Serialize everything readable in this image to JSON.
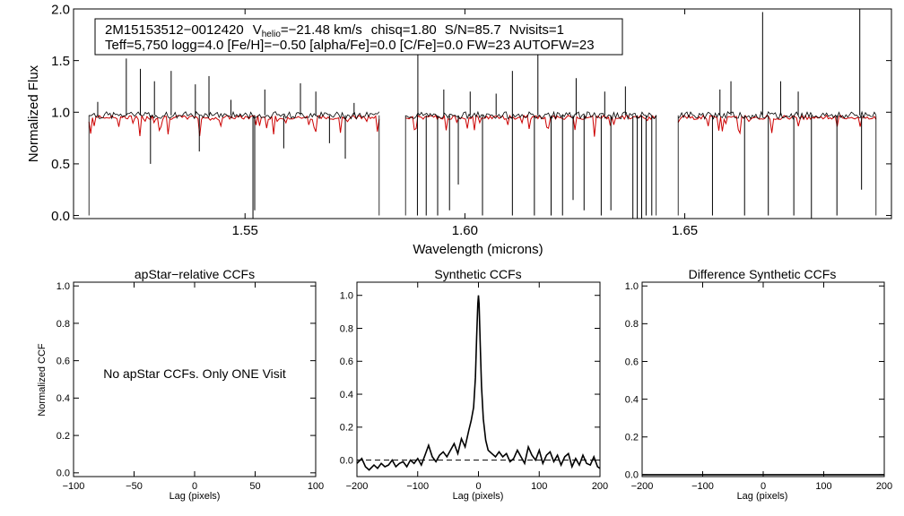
{
  "spectrum_panel": {
    "id_line": "2M15153512−0012420",
    "vhelio_symbol": "V",
    "vhelio_subscript": "helio",
    "vhelio_value": "=−21.48 km/s",
    "chisq": "chisq=1.80",
    "snr": "S/N=85.7",
    "nvisits": "Nvisits=1",
    "params_line": "Teff=5,750 logg=4.0 [Fe/H]=−0.50 [alpha/Fe]=0.0 [C/Fe]=0.0 FW=23 AUTOFW=23",
    "colors": {
      "observed": "#000000",
      "model": "#cc0000"
    }
  },
  "ccf_panels": {
    "ylabel": "Normalized CCF",
    "apstar": {
      "title": "apStar−relative CCFs",
      "xlabel": "Lag (pixels)",
      "message": "No apStar CCFs.  Only ONE Visit"
    },
    "synthetic": {
      "title": "Synthetic CCFs",
      "xlabel": "Lag (pixels)"
    },
    "difference": {
      "title": "Difference Synthetic CCFs",
      "xlabel": "Lag (pixels)"
    }
  },
  "chart_data": [
    {
      "type": "line",
      "title": "",
      "xlabel": "Wavelength (microns)",
      "ylabel": "Normalized Flux",
      "xlim": [
        1.511,
        1.697
      ],
      "ylim": [
        -0.03,
        2.0
      ],
      "xticks": [
        "1.55",
        "1.60",
        "1.65"
      ],
      "xtick_values": [
        1.55,
        1.6,
        1.65
      ],
      "yticks": [
        "0.0",
        "0.5",
        "1.0",
        "1.5",
        "2.0"
      ],
      "ytick_values": [
        0.0,
        0.5,
        1.0,
        1.5,
        2.0
      ],
      "detector_chips": [
        [
          1.5145,
          1.5805
        ],
        [
          1.5865,
          1.6435
        ],
        [
          1.6485,
          1.6935
        ]
      ],
      "continuum": 0.97,
      "model_continuum": 0.95,
      "emission_spikes": [
        {
          "x": 1.5165,
          "y": 1.1
        },
        {
          "x": 1.523,
          "y": 1.52
        },
        {
          "x": 1.5262,
          "y": 1.42
        },
        {
          "x": 1.5294,
          "y": 1.3
        },
        {
          "x": 1.5332,
          "y": 1.4
        },
        {
          "x": 1.5387,
          "y": 1.27
        },
        {
          "x": 1.5418,
          "y": 1.35
        },
        {
          "x": 1.5468,
          "y": 1.12
        },
        {
          "x": 1.5545,
          "y": 1.22
        },
        {
          "x": 1.5626,
          "y": 1.28
        },
        {
          "x": 1.5661,
          "y": 1.2
        },
        {
          "x": 1.5748,
          "y": 1.09
        },
        {
          "x": 1.5893,
          "y": 1.65
        },
        {
          "x": 1.5952,
          "y": 1.22
        },
        {
          "x": 1.6012,
          "y": 1.2
        },
        {
          "x": 1.6071,
          "y": 1.18
        },
        {
          "x": 1.6108,
          "y": 1.4
        },
        {
          "x": 1.6166,
          "y": 1.82
        },
        {
          "x": 1.6253,
          "y": 1.33
        },
        {
          "x": 1.6318,
          "y": 1.2
        },
        {
          "x": 1.6365,
          "y": 1.25
        },
        {
          "x": 1.658,
          "y": 1.22
        },
        {
          "x": 1.6605,
          "y": 1.3
        },
        {
          "x": 1.6677,
          "y": 1.97
        },
        {
          "x": 1.6718,
          "y": 1.3
        },
        {
          "x": 1.6758,
          "y": 1.2
        },
        {
          "x": 1.6898,
          "y": 2.0
        }
      ],
      "absorption_drops": [
        {
          "x": 1.5285,
          "y": 0.5
        },
        {
          "x": 1.5396,
          "y": 0.62
        },
        {
          "x": 1.5518,
          "y": -0.03
        },
        {
          "x": 1.5522,
          "y": 0.05
        },
        {
          "x": 1.5588,
          "y": 0.65
        },
        {
          "x": 1.5692,
          "y": 0.7
        },
        {
          "x": 1.5728,
          "y": 0.55
        },
        {
          "x": 1.5892,
          "y": 0.0
        },
        {
          "x": 1.5912,
          "y": 0.0
        },
        {
          "x": 1.5938,
          "y": 0.0
        },
        {
          "x": 1.5965,
          "y": 0.05
        },
        {
          "x": 1.5985,
          "y": 0.3
        },
        {
          "x": 1.604,
          "y": 0.0
        },
        {
          "x": 1.6108,
          "y": 0.0
        },
        {
          "x": 1.6158,
          "y": 0.0
        },
        {
          "x": 1.6196,
          "y": 0.0
        },
        {
          "x": 1.6222,
          "y": 0.0
        },
        {
          "x": 1.6246,
          "y": 0.15
        },
        {
          "x": 1.6271,
          "y": 0.05
        },
        {
          "x": 1.631,
          "y": 0.0
        },
        {
          "x": 1.6332,
          "y": 0.05
        },
        {
          "x": 1.6382,
          "y": -0.03
        },
        {
          "x": 1.6392,
          "y": -0.03
        },
        {
          "x": 1.6402,
          "y": -0.03
        },
        {
          "x": 1.6412,
          "y": 0.0
        },
        {
          "x": 1.6425,
          "y": 0.0
        },
        {
          "x": 1.6563,
          "y": 0.0
        },
        {
          "x": 1.6636,
          "y": 0.0
        },
        {
          "x": 1.669,
          "y": 0.0
        },
        {
          "x": 1.6748,
          "y": 0.0
        },
        {
          "x": 1.6788,
          "y": -0.03
        },
        {
          "x": 1.6846,
          "y": 0.0
        },
        {
          "x": 1.6902,
          "y": 0.25
        }
      ],
      "series": [
        {
          "name": "",
          "color": "#000000"
        },
        {
          "name": "",
          "color": "#cc0000"
        }
      ]
    },
    {
      "type": "line",
      "title": "apStar−relative CCFs",
      "xlabel": "Lag (pixels)",
      "ylabel": "Normalized CCF",
      "xlim": [
        -100,
        100
      ],
      "ylim": [
        -0.02,
        1.02
      ],
      "xticks": [
        "−100",
        "−50",
        "0",
        "50",
        "100"
      ],
      "xtick_values": [
        -100,
        -50,
        0,
        50,
        100
      ],
      "yticks": [
        "0.0",
        "0.2",
        "0.4",
        "0.6",
        "0.8",
        "1.0"
      ],
      "ytick_values": [
        0.0,
        0.2,
        0.4,
        0.6,
        0.8,
        1.0
      ],
      "series": []
    },
    {
      "type": "line",
      "title": "Synthetic CCFs",
      "xlabel": "Lag (pixels)",
      "xlim": [
        -200,
        200
      ],
      "ylim": [
        -0.1,
        1.08
      ],
      "xticks": [
        "−200",
        "−100",
        "0",
        "100",
        "200"
      ],
      "xtick_values": [
        -200,
        -100,
        0,
        100,
        200
      ],
      "yticks": [
        "0.0",
        "0.2",
        "0.4",
        "0.6",
        "0.8",
        "1.0"
      ],
      "ytick_values": [
        0.0,
        0.2,
        0.4,
        0.6,
        0.8,
        1.0
      ],
      "reference_line_y": 0.0,
      "series": [
        {
          "name": "",
          "x": [
            -200,
            -192,
            -186,
            -180,
            -172,
            -166,
            -160,
            -154,
            -148,
            -142,
            -136,
            -130,
            -124,
            -118,
            -112,
            -106,
            -100,
            -94,
            -88,
            -82,
            -76,
            -70,
            -64,
            -58,
            -52,
            -46,
            -40,
            -34,
            -28,
            -22,
            -16,
            -12,
            -8,
            -5,
            -3,
            -1,
            0,
            1,
            3,
            5,
            8,
            12,
            16,
            22,
            28,
            34,
            40,
            46,
            52,
            58,
            64,
            70,
            76,
            82,
            88,
            94,
            100,
            106,
            112,
            118,
            124,
            130,
            136,
            142,
            148,
            154,
            160,
            166,
            172,
            178,
            184,
            190,
            196,
            200
          ],
          "y": [
            -0.02,
            0.01,
            -0.04,
            -0.06,
            -0.03,
            -0.05,
            -0.02,
            -0.04,
            -0.03,
            0.0,
            -0.04,
            -0.02,
            -0.01,
            -0.04,
            0.0,
            -0.02,
            0.01,
            -0.03,
            0.03,
            0.09,
            0.02,
            -0.01,
            0.03,
            0.05,
            0.02,
            0.06,
            0.1,
            0.04,
            0.13,
            0.08,
            0.18,
            0.24,
            0.32,
            0.5,
            0.75,
            0.95,
            1.0,
            0.95,
            0.7,
            0.45,
            0.25,
            0.12,
            0.06,
            0.04,
            0.02,
            0.05,
            0.02,
            0.04,
            -0.01,
            0.01,
            0.06,
            0.02,
            -0.02,
            0.08,
            0.03,
            0.0,
            0.06,
            -0.02,
            0.03,
            0.05,
            -0.01,
            0.03,
            -0.03,
            0.02,
            0.04,
            -0.04,
            0.01,
            -0.03,
            0.03,
            -0.02,
            -0.03,
            0.02,
            -0.04,
            -0.05
          ],
          "color": "#000000"
        }
      ]
    },
    {
      "type": "line",
      "title": "Difference Synthetic CCFs",
      "xlabel": "Lag (pixels)",
      "xlim": [
        -200,
        200
      ],
      "ylim": [
        -0.01,
        1.02
      ],
      "xticks": [
        "−200",
        "−100",
        "0",
        "100",
        "200"
      ],
      "xtick_values": [
        -200,
        -100,
        0,
        100,
        200
      ],
      "yticks": [
        "0.0",
        "0.2",
        "0.4",
        "0.6",
        "0.8",
        "1.0"
      ],
      "ytick_values": [
        0.0,
        0.2,
        0.4,
        0.6,
        0.8,
        1.0
      ],
      "series": [
        {
          "name": "",
          "x": [
            -200,
            200
          ],
          "y": [
            0.0,
            0.0
          ],
          "color": "#000000"
        }
      ]
    }
  ]
}
